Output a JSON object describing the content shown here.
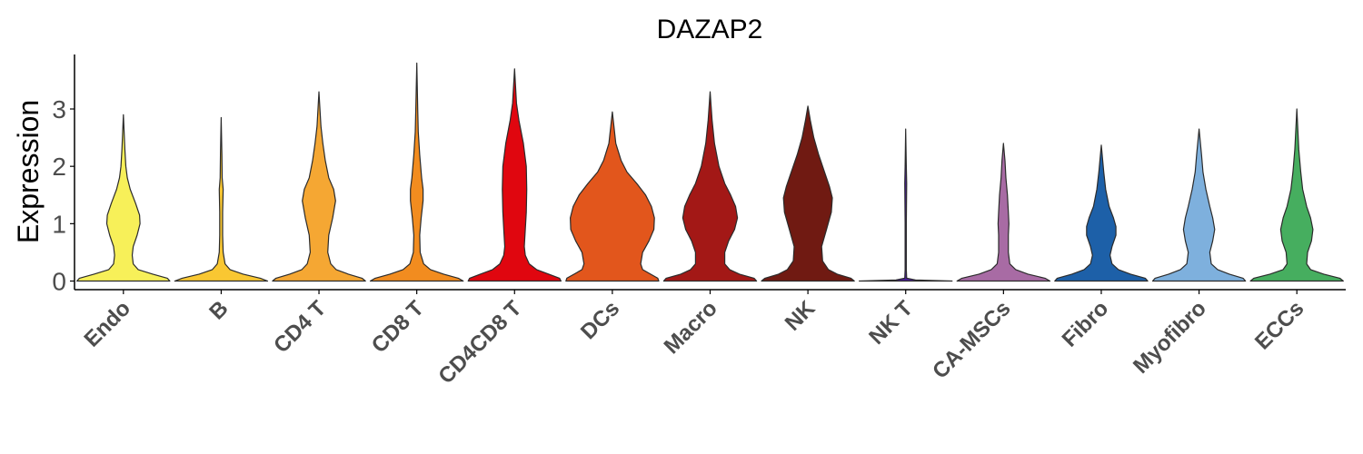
{
  "chart_data": {
    "type": "violin",
    "title": "DAZAP2",
    "xlabel": "",
    "ylabel": "Expression",
    "ylim": [
      -0.15,
      3.95
    ],
    "yticks": [
      0,
      1,
      2,
      3
    ],
    "ytick_labels": [
      "0",
      "1",
      "2",
      "3"
    ],
    "grid": false,
    "legend": "none",
    "categories": [
      "Endo",
      "B",
      "CD4 T",
      "CD8 T",
      "CD4CD8 T",
      "DCs",
      "Macro",
      "NK",
      "NK T",
      "CA-MSCs",
      "Fibro",
      "Myofibro",
      "ECCs"
    ],
    "series": [
      {
        "category": "Endo",
        "color": "#F7F059",
        "max": 2.9,
        "profile": [
          [
            0,
            0.95
          ],
          [
            0.05,
            0.9
          ],
          [
            0.12,
            0.6
          ],
          [
            0.2,
            0.3
          ],
          [
            0.3,
            0.2
          ],
          [
            0.45,
            0.18
          ],
          [
            0.6,
            0.2
          ],
          [
            0.8,
            0.28
          ],
          [
            1.0,
            0.34
          ],
          [
            1.15,
            0.33
          ],
          [
            1.35,
            0.25
          ],
          [
            1.6,
            0.14
          ],
          [
            1.8,
            0.08
          ],
          [
            2.0,
            0.05
          ],
          [
            2.3,
            0.03
          ],
          [
            2.9,
            0
          ]
        ]
      },
      {
        "category": "B",
        "color": "#F9C732",
        "max": 2.85,
        "profile": [
          [
            0,
            0.95
          ],
          [
            0.05,
            0.8
          ],
          [
            0.12,
            0.45
          ],
          [
            0.2,
            0.18
          ],
          [
            0.3,
            0.08
          ],
          [
            0.5,
            0.04
          ],
          [
            0.8,
            0.03
          ],
          [
            1.2,
            0.03
          ],
          [
            1.6,
            0.04
          ],
          [
            1.8,
            0.02
          ],
          [
            2.2,
            0.015
          ],
          [
            2.85,
            0
          ]
        ]
      },
      {
        "category": "CD4 T",
        "color": "#F5A733",
        "max": 3.3,
        "profile": [
          [
            0,
            0.95
          ],
          [
            0.05,
            0.88
          ],
          [
            0.12,
            0.6
          ],
          [
            0.2,
            0.35
          ],
          [
            0.3,
            0.24
          ],
          [
            0.5,
            0.18
          ],
          [
            0.8,
            0.2
          ],
          [
            1.1,
            0.28
          ],
          [
            1.4,
            0.34
          ],
          [
            1.6,
            0.3
          ],
          [
            1.8,
            0.2
          ],
          [
            2.1,
            0.13
          ],
          [
            2.4,
            0.08
          ],
          [
            2.7,
            0.04
          ],
          [
            3.3,
            0
          ]
        ]
      },
      {
        "category": "CD8 T",
        "color": "#F28C1F",
        "max": 3.8,
        "profile": [
          [
            0,
            0.95
          ],
          [
            0.05,
            0.85
          ],
          [
            0.12,
            0.55
          ],
          [
            0.2,
            0.28
          ],
          [
            0.3,
            0.14
          ],
          [
            0.5,
            0.07
          ],
          [
            0.8,
            0.06
          ],
          [
            1.1,
            0.09
          ],
          [
            1.4,
            0.13
          ],
          [
            1.6,
            0.13
          ],
          [
            1.8,
            0.1
          ],
          [
            2.2,
            0.06
          ],
          [
            2.6,
            0.03
          ],
          [
            3.0,
            0.02
          ],
          [
            3.8,
            0
          ]
        ]
      },
      {
        "category": "CD4CD8 T",
        "color": "#E0060F",
        "max": 3.7,
        "profile": [
          [
            0,
            0.95
          ],
          [
            0.05,
            0.92
          ],
          [
            0.12,
            0.7
          ],
          [
            0.2,
            0.45
          ],
          [
            0.3,
            0.3
          ],
          [
            0.45,
            0.22
          ],
          [
            0.6,
            0.2
          ],
          [
            0.9,
            0.22
          ],
          [
            1.2,
            0.24
          ],
          [
            1.6,
            0.25
          ],
          [
            2.0,
            0.24
          ],
          [
            2.4,
            0.18
          ],
          [
            2.8,
            0.09
          ],
          [
            3.1,
            0.04
          ],
          [
            3.7,
            0
          ]
        ]
      },
      {
        "category": "DCs",
        "color": "#E2561C",
        "max": 2.95,
        "profile": [
          [
            0,
            0.95
          ],
          [
            0.05,
            0.93
          ],
          [
            0.12,
            0.78
          ],
          [
            0.2,
            0.62
          ],
          [
            0.3,
            0.58
          ],
          [
            0.5,
            0.62
          ],
          [
            0.7,
            0.75
          ],
          [
            0.9,
            0.85
          ],
          [
            1.1,
            0.86
          ],
          [
            1.3,
            0.8
          ],
          [
            1.5,
            0.68
          ],
          [
            1.7,
            0.5
          ],
          [
            1.9,
            0.3
          ],
          [
            2.1,
            0.18
          ],
          [
            2.4,
            0.07
          ],
          [
            2.95,
            0
          ]
        ]
      },
      {
        "category": "Macro",
        "color": "#A31816",
        "max": 3.3,
        "profile": [
          [
            0,
            0.95
          ],
          [
            0.05,
            0.9
          ],
          [
            0.12,
            0.6
          ],
          [
            0.2,
            0.4
          ],
          [
            0.3,
            0.3
          ],
          [
            0.5,
            0.3
          ],
          [
            0.7,
            0.38
          ],
          [
            0.9,
            0.5
          ],
          [
            1.1,
            0.56
          ],
          [
            1.3,
            0.52
          ],
          [
            1.5,
            0.42
          ],
          [
            1.7,
            0.3
          ],
          [
            2.0,
            0.18
          ],
          [
            2.4,
            0.09
          ],
          [
            2.8,
            0.04
          ],
          [
            3.3,
            0
          ]
        ]
      },
      {
        "category": "NK",
        "color": "#701A12",
        "max": 3.05,
        "profile": [
          [
            0,
            0.95
          ],
          [
            0.05,
            0.88
          ],
          [
            0.12,
            0.6
          ],
          [
            0.2,
            0.42
          ],
          [
            0.35,
            0.3
          ],
          [
            0.6,
            0.28
          ],
          [
            0.9,
            0.38
          ],
          [
            1.2,
            0.48
          ],
          [
            1.45,
            0.5
          ],
          [
            1.65,
            0.44
          ],
          [
            1.9,
            0.34
          ],
          [
            2.2,
            0.22
          ],
          [
            2.5,
            0.12
          ],
          [
            2.8,
            0.05
          ],
          [
            3.05,
            0
          ]
        ]
      },
      {
        "category": "NK T",
        "color": "#4A1C9A",
        "max": 2.65,
        "profile": [
          [
            0,
            0.95
          ],
          [
            0.02,
            0.2
          ],
          [
            0.05,
            0.02
          ],
          [
            0.2,
            0.012
          ],
          [
            1.0,
            0.012
          ],
          [
            1.7,
            0.02
          ],
          [
            2.0,
            0.012
          ],
          [
            2.65,
            0
          ]
        ]
      },
      {
        "category": "CA-MSCs",
        "color": "#A86BA4",
        "max": 2.4,
        "profile": [
          [
            0,
            0.95
          ],
          [
            0.05,
            0.85
          ],
          [
            0.12,
            0.5
          ],
          [
            0.2,
            0.25
          ],
          [
            0.3,
            0.13
          ],
          [
            0.5,
            0.1
          ],
          [
            0.8,
            0.1
          ],
          [
            1.0,
            0.11
          ],
          [
            1.2,
            0.1
          ],
          [
            1.5,
            0.08
          ],
          [
            1.8,
            0.05
          ],
          [
            2.1,
            0.03
          ],
          [
            2.4,
            0
          ]
        ]
      },
      {
        "category": "Fibro",
        "color": "#1D60A8",
        "max": 2.37,
        "profile": [
          [
            0,
            0.95
          ],
          [
            0.05,
            0.9
          ],
          [
            0.12,
            0.6
          ],
          [
            0.2,
            0.35
          ],
          [
            0.3,
            0.22
          ],
          [
            0.45,
            0.18
          ],
          [
            0.6,
            0.22
          ],
          [
            0.8,
            0.3
          ],
          [
            0.95,
            0.3
          ],
          [
            1.1,
            0.25
          ],
          [
            1.3,
            0.16
          ],
          [
            1.6,
            0.09
          ],
          [
            1.9,
            0.05
          ],
          [
            2.37,
            0
          ]
        ]
      },
      {
        "category": "Myofibro",
        "color": "#7EB0DD",
        "max": 2.65,
        "profile": [
          [
            0,
            0.95
          ],
          [
            0.05,
            0.9
          ],
          [
            0.12,
            0.62
          ],
          [
            0.2,
            0.38
          ],
          [
            0.3,
            0.25
          ],
          [
            0.5,
            0.22
          ],
          [
            0.7,
            0.28
          ],
          [
            0.9,
            0.32
          ],
          [
            1.1,
            0.28
          ],
          [
            1.3,
            0.22
          ],
          [
            1.6,
            0.14
          ],
          [
            1.9,
            0.08
          ],
          [
            2.2,
            0.05
          ],
          [
            2.65,
            0
          ]
        ]
      },
      {
        "category": "ECCs",
        "color": "#46AE5F",
        "max": 3.0,
        "profile": [
          [
            0,
            0.95
          ],
          [
            0.05,
            0.88
          ],
          [
            0.12,
            0.55
          ],
          [
            0.2,
            0.28
          ],
          [
            0.3,
            0.2
          ],
          [
            0.5,
            0.22
          ],
          [
            0.7,
            0.3
          ],
          [
            0.9,
            0.33
          ],
          [
            1.1,
            0.28
          ],
          [
            1.3,
            0.2
          ],
          [
            1.6,
            0.12
          ],
          [
            1.9,
            0.08
          ],
          [
            2.3,
            0.04
          ],
          [
            3.0,
            0
          ]
        ]
      }
    ]
  }
}
